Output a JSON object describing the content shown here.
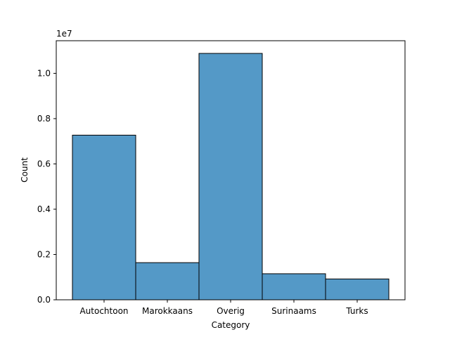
{
  "chart_data": {
    "type": "bar",
    "title": "",
    "xlabel": "Category",
    "ylabel": "Count",
    "scale_label": "1e7",
    "categories": [
      "Autochtoon",
      "Marokkaans",
      "Overig",
      "Surinaams",
      "Turks"
    ],
    "values": [
      7270000,
      1640000,
      10880000,
      1150000,
      920000
    ],
    "ylim": [
      0,
      11440000
    ],
    "yticks": [
      0,
      2000000,
      4000000,
      6000000,
      8000000,
      10000000
    ],
    "ytick_labels": [
      "0.0",
      "0.2",
      "0.4",
      "0.6",
      "0.8",
      "1.0"
    ],
    "bar_color": "#5499c7",
    "edge_color": "#000000",
    "grid": false,
    "legend": "none"
  }
}
